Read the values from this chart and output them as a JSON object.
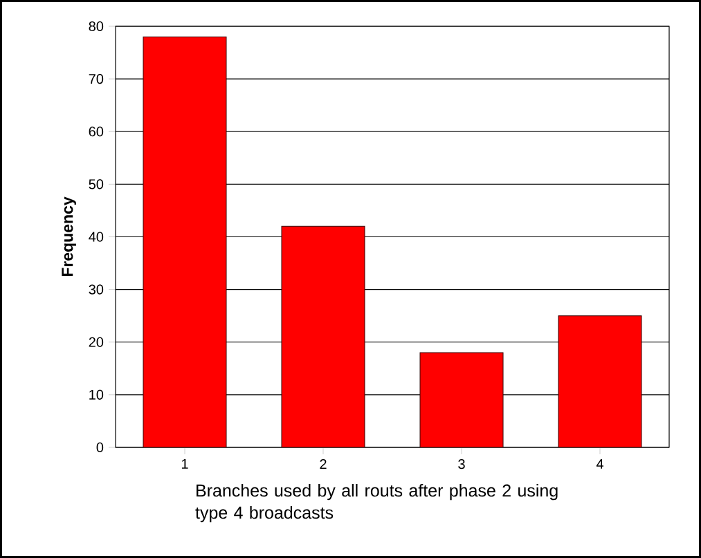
{
  "chart_data": {
    "type": "bar",
    "xlabel": "Branches used by all routs after phase 2 using type 4  broadcasts",
    "ylabel": "Frequency",
    "categories": [
      "1",
      "2",
      "3",
      "4"
    ],
    "values": [
      78,
      42,
      18,
      25
    ],
    "color": "#ff0000",
    "ylim": [
      0,
      80
    ],
    "yticks": [
      0,
      10,
      20,
      30,
      40,
      50,
      60,
      70,
      80
    ],
    "grid": "y"
  }
}
